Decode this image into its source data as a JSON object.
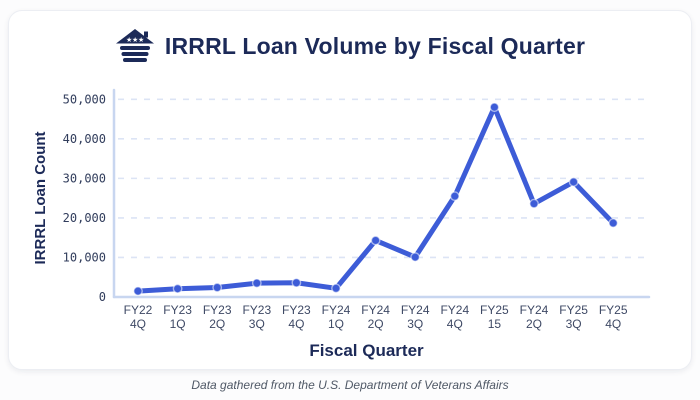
{
  "header": {
    "icon": "house-flag-icon",
    "title": "IRRRL Loan Volume by Fiscal Quarter"
  },
  "footer": {
    "text": "Data gathered from the U.S. Department of Veterans Affairs"
  },
  "chart_data": {
    "type": "line",
    "title": "IRRRL Loan Volume by Fiscal Quarter",
    "xlabel": "Fiscal Quarter",
    "ylabel": "IRRRL Loan Count",
    "categories": [
      "FY22 4Q",
      "FY23 1Q",
      "FY23 2Q",
      "FY23 3Q",
      "FY23 4Q",
      "FY24 1Q",
      "FY24 2Q",
      "FY24 3Q",
      "FY24 4Q",
      "FY25 15",
      "FY24 2Q",
      "FY25 3Q",
      "FY25 4Q"
    ],
    "values": [
      1500,
      2100,
      2400,
      3500,
      3600,
      2200,
      14300,
      10100,
      25500,
      48000,
      23600,
      29100,
      18700
    ],
    "ylim": [
      0,
      50000
    ],
    "yticks": [
      0,
      10000,
      20000,
      30000,
      40000,
      50000
    ],
    "ytick_labels": [
      "0",
      "10,000",
      "20,000",
      "30,000",
      "40,000",
      "50,000"
    ],
    "grid": "horizontal-dashed",
    "legend": "none",
    "colors": {
      "line": "#3D5CD7",
      "axis": "#C8D6F0",
      "gridline": "#DCE4F5",
      "title_navy": "#1C2A58"
    }
  }
}
